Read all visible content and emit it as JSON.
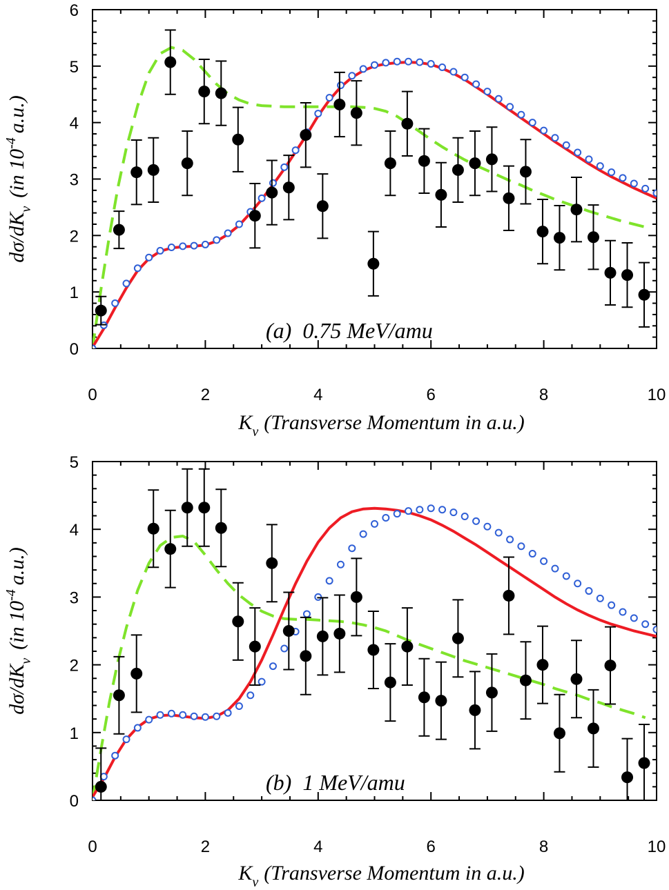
{
  "chart_data": [
    {
      "type": "scatter",
      "panel": "a",
      "annotation": "(a)  0.75 MeV/amu",
      "xlabel": {
        "symbol": "K",
        "sub": "v",
        "rest": "(Transverse Momentum in a.u.)"
      },
      "ylabel": {
        "main": "dσ/dK",
        "sub": "v",
        "units_pre": "(in 10",
        "exp": "-4",
        "units_post": "a.u.)"
      },
      "xlim": [
        0,
        10
      ],
      "ylim": [
        0,
        6
      ],
      "xticks": [
        "0",
        "2",
        "4",
        "6",
        "8",
        "10"
      ],
      "yticks": [
        "0",
        "1",
        "2",
        "3",
        "4",
        "5",
        "6"
      ],
      "colors": {
        "red": "#ee1c24",
        "green": "#7fe32b",
        "blue": "#2f5fd6",
        "black": "#000000"
      },
      "experiment": {
        "x": [
          0.15,
          0.47,
          0.78,
          1.08,
          1.38,
          1.68,
          1.98,
          2.28,
          2.58,
          2.88,
          3.18,
          3.48,
          3.78,
          4.08,
          4.38,
          4.68,
          4.98,
          5.28,
          5.58,
          5.88,
          6.18,
          6.48,
          6.78,
          7.08,
          7.38,
          7.68,
          7.98,
          8.28,
          8.58,
          8.88,
          9.18,
          9.48,
          9.78
        ],
        "y": [
          0.67,
          2.1,
          3.12,
          3.16,
          5.07,
          3.28,
          4.55,
          4.52,
          3.7,
          2.35,
          2.76,
          2.85,
          3.78,
          2.52,
          4.32,
          4.17,
          1.5,
          3.28,
          3.98,
          3.32,
          2.72,
          3.16,
          3.28,
          3.35,
          2.66,
          3.13,
          2.07,
          1.96,
          2.46,
          1.97,
          1.34,
          1.3,
          0.95
        ],
        "err": [
          0.25,
          0.33,
          0.57,
          0.57,
          0.57,
          0.57,
          0.57,
          0.57,
          0.57,
          0.57,
          0.57,
          0.57,
          0.57,
          0.57,
          0.57,
          0.57,
          0.57,
          0.57,
          0.57,
          0.57,
          0.57,
          0.57,
          0.57,
          0.57,
          0.57,
          0.57,
          0.57,
          0.57,
          0.57,
          0.57,
          0.57,
          0.57,
          0.57
        ]
      },
      "red_curve": {
        "x": [
          0,
          0.2,
          0.4,
          0.6,
          0.8,
          1.0,
          1.2,
          1.4,
          1.6,
          1.8,
          2.0,
          2.2,
          2.4,
          2.6,
          2.8,
          3.0,
          3.2,
          3.4,
          3.6,
          3.8,
          4.0,
          4.2,
          4.4,
          4.6,
          4.8,
          5.0,
          5.2,
          5.4,
          5.6,
          5.8,
          6.0,
          6.2,
          6.4,
          6.6,
          6.8,
          7.0,
          7.2,
          7.4,
          7.6,
          7.8,
          8.0,
          8.2,
          8.4,
          8.6,
          8.8,
          9.0,
          9.2,
          9.4,
          9.6,
          9.8,
          10.0
        ],
        "y": [
          0.02,
          0.35,
          0.72,
          1.07,
          1.38,
          1.59,
          1.72,
          1.78,
          1.8,
          1.81,
          1.83,
          1.9,
          2.02,
          2.18,
          2.4,
          2.64,
          2.9,
          3.18,
          3.48,
          3.79,
          4.12,
          4.4,
          4.63,
          4.8,
          4.92,
          5.0,
          5.04,
          5.06,
          5.07,
          5.06,
          5.03,
          4.96,
          4.87,
          4.76,
          4.63,
          4.5,
          4.36,
          4.22,
          4.08,
          3.94,
          3.8,
          3.66,
          3.53,
          3.4,
          3.27,
          3.15,
          3.04,
          2.94,
          2.84,
          2.75,
          2.66
        ]
      },
      "blue_curve": {
        "x": [
          0,
          0.2,
          0.4,
          0.6,
          0.8,
          1.0,
          1.2,
          1.4,
          1.6,
          1.8,
          2.0,
          2.2,
          2.4,
          2.6,
          2.8,
          3.0,
          3.2,
          3.4,
          3.6,
          3.8,
          4.0,
          4.2,
          4.4,
          4.6,
          4.8,
          5.0,
          5.2,
          5.4,
          5.6,
          5.8,
          6.0,
          6.2,
          6.4,
          6.6,
          6.8,
          7.0,
          7.2,
          7.4,
          7.6,
          7.8,
          8.0,
          8.2,
          8.4,
          8.6,
          8.8,
          9.0,
          9.2,
          9.4,
          9.6,
          9.8,
          10.0
        ],
        "y": [
          0.0,
          0.41,
          0.8,
          1.15,
          1.42,
          1.61,
          1.73,
          1.79,
          1.81,
          1.82,
          1.84,
          1.92,
          2.04,
          2.2,
          2.42,
          2.66,
          2.93,
          3.21,
          3.51,
          3.83,
          4.16,
          4.44,
          4.66,
          4.83,
          4.95,
          5.02,
          5.06,
          5.08,
          5.08,
          5.07,
          5.04,
          4.98,
          4.9,
          4.8,
          4.68,
          4.55,
          4.42,
          4.28,
          4.14,
          4.0,
          3.86,
          3.73,
          3.6,
          3.47,
          3.35,
          3.23,
          3.12,
          3.02,
          2.92,
          2.83,
          2.75
        ]
      },
      "green_curve": {
        "x": [
          0,
          0.15,
          0.3,
          0.45,
          0.6,
          0.8,
          1.0,
          1.2,
          1.4,
          1.6,
          1.8,
          2.0,
          2.2,
          2.4,
          2.6,
          2.8,
          3.0,
          3.2,
          3.4,
          3.6,
          3.8,
          4.0,
          4.2,
          4.4,
          4.6,
          4.8,
          5.0,
          5.2,
          5.4,
          5.6,
          5.8,
          6.0,
          6.2,
          6.4,
          6.6,
          6.8,
          7.0,
          7.2,
          7.4,
          7.6,
          7.8,
          8.0,
          8.2,
          8.4,
          8.6,
          8.8,
          9.0,
          9.2,
          9.4,
          9.6,
          9.8
        ],
        "y": [
          0.0,
          1.05,
          2.0,
          2.85,
          3.55,
          4.3,
          4.88,
          5.22,
          5.33,
          5.28,
          5.12,
          4.9,
          4.68,
          4.51,
          4.4,
          4.33,
          4.3,
          4.29,
          4.28,
          4.28,
          4.28,
          4.28,
          4.28,
          4.28,
          4.28,
          4.27,
          4.25,
          4.2,
          4.11,
          3.98,
          3.84,
          3.7,
          3.57,
          3.45,
          3.34,
          3.24,
          3.15,
          3.06,
          2.97,
          2.89,
          2.8,
          2.72,
          2.64,
          2.57,
          2.5,
          2.43,
          2.37,
          2.31,
          2.25,
          2.2,
          2.15
        ]
      }
    },
    {
      "type": "scatter",
      "panel": "b",
      "annotation": "(b)  1 MeV/amu",
      "xlabel": {
        "symbol": "K",
        "sub": "v",
        "rest": "(Transverse Momentum in a.u.)"
      },
      "ylabel": {
        "main": "dσ/dK",
        "sub": "v",
        "units_pre": "(in 10",
        "exp": "-4",
        "units_post": "a.u.)"
      },
      "xlim": [
        0,
        10
      ],
      "ylim": [
        0,
        5
      ],
      "xticks": [
        "0",
        "2",
        "4",
        "6",
        "8",
        "10"
      ],
      "yticks": [
        "0",
        "1",
        "2",
        "3",
        "4",
        "5"
      ],
      "colors": {
        "red": "#ee1c24",
        "green": "#7fe32b",
        "blue": "#2f5fd6",
        "black": "#000000"
      },
      "experiment": {
        "x": [
          0.15,
          0.47,
          0.78,
          1.08,
          1.38,
          1.68,
          1.98,
          2.28,
          2.58,
          2.88,
          3.18,
          3.48,
          3.78,
          4.08,
          4.38,
          4.68,
          4.98,
          5.28,
          5.58,
          5.88,
          6.18,
          6.48,
          6.78,
          7.08,
          7.38,
          7.68,
          7.98,
          8.28,
          8.58,
          8.88,
          9.18,
          9.48,
          9.78
        ],
        "y": [
          0.2,
          1.55,
          1.87,
          4.01,
          3.71,
          4.32,
          4.32,
          4.02,
          2.64,
          2.27,
          3.5,
          2.5,
          2.13,
          2.42,
          2.46,
          3.0,
          2.22,
          1.74,
          2.27,
          1.52,
          1.47,
          2.39,
          1.33,
          1.59,
          3.02,
          1.77,
          2.0,
          0.99,
          1.79,
          1.06,
          1.99,
          0.34,
          0.55
        ],
        "err": [
          0.57,
          0.57,
          0.57,
          0.57,
          0.57,
          0.57,
          0.57,
          0.57,
          0.57,
          0.57,
          0.57,
          0.57,
          0.57,
          0.57,
          0.57,
          0.57,
          0.57,
          0.57,
          0.57,
          0.57,
          0.57,
          0.57,
          0.57,
          0.57,
          0.57,
          0.57,
          0.57,
          0.57,
          0.57,
          0.57,
          0.57,
          0.57,
          0.57
        ]
      },
      "red_curve": {
        "x": [
          0,
          0.2,
          0.4,
          0.6,
          0.8,
          1.0,
          1.2,
          1.4,
          1.6,
          1.8,
          2.0,
          2.2,
          2.4,
          2.6,
          2.8,
          3.0,
          3.2,
          3.4,
          3.6,
          3.8,
          4.0,
          4.2,
          4.4,
          4.6,
          4.8,
          5.0,
          5.2,
          5.4,
          5.6,
          5.8,
          6.0,
          6.2,
          6.4,
          6.6,
          6.8,
          7.0,
          7.2,
          7.4,
          7.6,
          7.8,
          8.0,
          8.2,
          8.4,
          8.6,
          8.8,
          9.0,
          9.2,
          9.4,
          9.6,
          9.8,
          10.0
        ],
        "y": [
          0.05,
          0.32,
          0.64,
          0.9,
          1.08,
          1.2,
          1.25,
          1.26,
          1.24,
          1.22,
          1.21,
          1.24,
          1.33,
          1.5,
          1.75,
          2.07,
          2.44,
          2.83,
          3.2,
          3.53,
          3.81,
          4.02,
          4.17,
          4.26,
          4.3,
          4.31,
          4.3,
          4.28,
          4.25,
          4.2,
          4.14,
          4.06,
          3.97,
          3.87,
          3.77,
          3.66,
          3.55,
          3.44,
          3.33,
          3.22,
          3.11,
          3.0,
          2.9,
          2.81,
          2.73,
          2.66,
          2.6,
          2.55,
          2.5,
          2.46,
          2.42
        ]
      },
      "blue_curve": {
        "x": [
          0,
          0.2,
          0.4,
          0.6,
          0.8,
          1.0,
          1.2,
          1.4,
          1.6,
          1.8,
          2.0,
          2.2,
          2.4,
          2.6,
          2.8,
          3.0,
          3.2,
          3.4,
          3.6,
          3.8,
          4.0,
          4.2,
          4.4,
          4.6,
          4.8,
          5.0,
          5.2,
          5.4,
          5.6,
          5.8,
          6.0,
          6.2,
          6.4,
          6.6,
          6.8,
          7.0,
          7.2,
          7.4,
          7.6,
          7.8,
          8.0,
          8.2,
          8.4,
          8.6,
          8.8,
          9.0,
          9.2,
          9.4,
          9.6,
          9.8,
          10.0
        ],
        "y": [
          0.0,
          0.35,
          0.66,
          0.9,
          1.07,
          1.19,
          1.26,
          1.28,
          1.26,
          1.24,
          1.23,
          1.24,
          1.29,
          1.39,
          1.55,
          1.75,
          1.98,
          2.24,
          2.49,
          2.75,
          3.0,
          3.24,
          3.48,
          3.72,
          3.93,
          4.08,
          4.17,
          4.23,
          4.27,
          4.29,
          4.31,
          4.29,
          4.25,
          4.19,
          4.12,
          4.04,
          3.95,
          3.85,
          3.75,
          3.64,
          3.53,
          3.42,
          3.31,
          3.2,
          3.09,
          2.98,
          2.88,
          2.78,
          2.69,
          2.6,
          2.52
        ]
      },
      "green_curve": {
        "x": [
          0,
          0.15,
          0.3,
          0.45,
          0.6,
          0.8,
          1.0,
          1.2,
          1.4,
          1.6,
          1.8,
          2.0,
          2.2,
          2.4,
          2.6,
          2.8,
          3.0,
          3.2,
          3.4,
          3.6,
          3.8,
          4.0,
          4.2,
          4.4,
          4.6,
          4.8,
          5.0,
          5.2,
          5.4,
          5.6,
          5.8,
          6.0,
          6.2,
          6.4,
          6.6,
          6.8,
          7.0,
          7.2,
          7.4,
          7.6,
          7.8,
          8.0,
          8.2,
          8.4,
          8.6,
          8.8,
          9.0,
          9.2,
          9.4,
          9.6,
          9.8
        ],
        "y": [
          0.0,
          0.75,
          1.45,
          2.05,
          2.55,
          3.1,
          3.5,
          3.76,
          3.88,
          3.9,
          3.82,
          3.62,
          3.4,
          3.2,
          3.03,
          2.9,
          2.79,
          2.72,
          2.68,
          2.67,
          2.67,
          2.66,
          2.65,
          2.64,
          2.62,
          2.59,
          2.55,
          2.5,
          2.43,
          2.36,
          2.3,
          2.24,
          2.18,
          2.12,
          2.06,
          2.01,
          1.96,
          1.91,
          1.86,
          1.81,
          1.76,
          1.71,
          1.65,
          1.6,
          1.55,
          1.49,
          1.44,
          1.38,
          1.33,
          1.28,
          1.22
        ]
      }
    }
  ]
}
